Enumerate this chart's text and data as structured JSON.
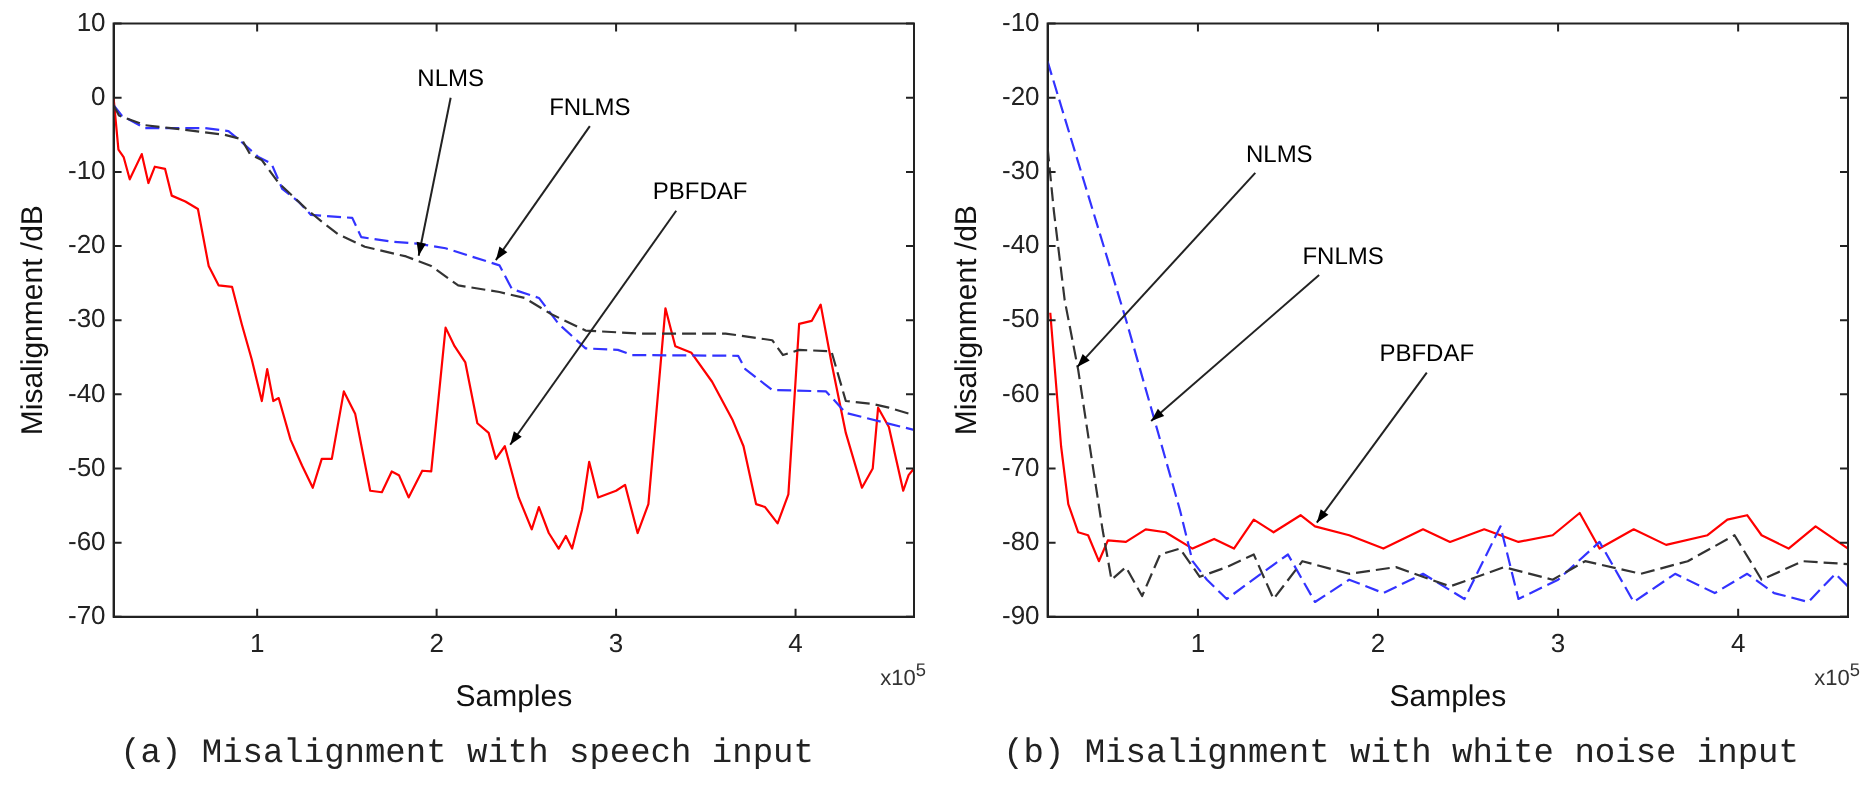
{
  "chart_data": [
    {
      "type": "line",
      "title": "(a) Misalignment with speech input",
      "xlabel": "Samples",
      "ylabel": "Misalignment /dB",
      "xlim": [
        0.2,
        4.66
      ],
      "xticks": [
        1,
        2,
        3,
        4
      ],
      "ylim": [
        -70,
        10
      ],
      "yticks": [
        10,
        0,
        -10,
        -20,
        -30,
        -40,
        -50,
        -60,
        -70
      ],
      "grid": false,
      "legend": false,
      "marker": "none",
      "annotations": [
        {
          "text": "NLMS",
          "x": 1.9,
          "y": -21.3
        },
        {
          "text": "FNLMS",
          "x": 2.33,
          "y": -21.9
        },
        {
          "text": "PBFDAF",
          "x": 2.41,
          "y": -46.8
        },
        "x10$^{5}$"
      ],
      "series": [
        {
          "color": "#333333",
          "line_style": "dashed",
          "x": [
            0.2,
            0.23,
            0.375,
            0.52,
            0.82,
            0.914,
            0.96,
            1.026,
            1.12,
            1.27,
            1.36,
            1.45,
            1.6,
            1.83,
            1.97,
            2.12,
            2.35,
            2.49,
            2.64,
            2.83,
            3.13,
            3.61,
            3.87,
            3.93,
            4.02,
            4.2,
            4.28,
            4.43,
            4.52,
            4.66
          ],
          "values": [
            -1,
            -2.4,
            -3.7,
            -4.1,
            -5,
            -5.6,
            -7.6,
            -8.4,
            -11.5,
            -14.9,
            -16.7,
            -18.4,
            -20.1,
            -21.4,
            -22.7,
            -25.3,
            -26.2,
            -27,
            -29.2,
            -31.4,
            -31.8,
            -31.8,
            -32.7,
            -34.7,
            -34,
            -34.2,
            -40.9,
            -41.3,
            -41.8,
            -42.8
          ]
        },
        {
          "color": "#3333ff",
          "line_style": "dashed",
          "x": [
            0.2,
            0.245,
            0.375,
            0.71,
            0.84,
            0.896,
            1.007,
            1.08,
            1.14,
            1.23,
            1.3,
            1.53,
            1.58,
            1.75,
            1.9,
            2.05,
            2.35,
            2.42,
            2.57,
            2.68,
            2.83,
            3.01,
            3.09,
            3.68,
            3.72,
            3.87,
            4.17,
            4.28,
            4.66
          ],
          "values": [
            -1,
            -2.4,
            -4.1,
            -4.1,
            -4.5,
            -5.6,
            -8,
            -8.9,
            -12.3,
            -14,
            -15.8,
            -16.2,
            -18.8,
            -19.4,
            -19.7,
            -20.3,
            -22.6,
            -25.8,
            -27,
            -30.5,
            -33.8,
            -34,
            -34.7,
            -34.8,
            -36.6,
            -39.4,
            -39.6,
            -42.5,
            -44.8
          ]
        },
        {
          "color": "#ff0000",
          "line_style": "solid",
          "x": [
            0.2,
            0.227,
            0.256,
            0.29,
            0.357,
            0.394,
            0.43,
            0.487,
            0.524,
            0.6,
            0.67,
            0.73,
            0.785,
            0.86,
            0.914,
            0.97,
            1.026,
            1.056,
            1.09,
            1.12,
            1.186,
            1.25,
            1.31,
            1.36,
            1.416,
            1.483,
            1.546,
            1.63,
            1.695,
            1.75,
            1.79,
            1.844,
            1.92,
            1.97,
            2.05,
            2.1,
            2.16,
            2.227,
            2.29,
            2.33,
            2.38,
            2.457,
            2.53,
            2.57,
            2.625,
            2.68,
            2.72,
            2.755,
            2.81,
            2.85,
            2.9,
            3.0,
            3.05,
            3.12,
            3.18,
            3.275,
            3.33,
            3.42,
            3.535,
            3.65,
            3.71,
            3.78,
            3.83,
            3.9,
            3.96,
            4.02,
            4.09,
            4.14,
            4.2,
            4.28,
            4.37,
            4.43,
            4.46,
            4.52,
            4.6,
            4.63,
            4.66
          ],
          "values": [
            0,
            -7,
            -8,
            -11,
            -7.6,
            -11.5,
            -9.3,
            -9.6,
            -13.2,
            -14,
            -15,
            -22.7,
            -25.3,
            -25.5,
            -30.5,
            -35.3,
            -40.9,
            -36.6,
            -40.9,
            -40.5,
            -46.1,
            -49.6,
            -52.6,
            -48.7,
            -48.7,
            -39.6,
            -42.6,
            -53,
            -53.2,
            -50.4,
            -50.9,
            -53.9,
            -50.3,
            -50.4,
            -31,
            -33.5,
            -35.7,
            -43.9,
            -45.2,
            -48.7,
            -47,
            -53.9,
            -58.2,
            -55.2,
            -58.7,
            -60.8,
            -59.1,
            -60.8,
            -55.6,
            -49.1,
            -53.9,
            -53,
            -52.2,
            -58.7,
            -54.8,
            -28.4,
            -33.5,
            -34.4,
            -38.3,
            -43.5,
            -47,
            -54.8,
            -55.2,
            -57.4,
            -53.5,
            -30.5,
            -30.1,
            -27.9,
            -35.7,
            -45.2,
            -52.6,
            -50,
            -41.8,
            -44.4,
            -53,
            -50.9,
            -50
          ]
        }
      ]
    },
    {
      "type": "line",
      "title": "(b) Misalignment with white noise input",
      "xlabel": "Samples",
      "ylabel": "Misalignment /dB",
      "xlim": [
        0.165,
        4.61
      ],
      "xticks": [
        1,
        2,
        3,
        4
      ],
      "ylim": [
        -90,
        -10
      ],
      "yticks": [
        -10,
        -20,
        -30,
        -40,
        -50,
        -60,
        -70,
        -80,
        -90
      ],
      "grid": false,
      "legend": false,
      "marker": "none",
      "annotations": [
        {
          "text": "NLMS",
          "x": 0.33,
          "y": -56.3
        },
        {
          "text": "FNLMS",
          "x": 0.74,
          "y": -63.6
        },
        {
          "text": "PBFDAF",
          "x": 1.66,
          "y": -77.3
        },
        "x10$^{5}$"
      ],
      "series": [
        {
          "color": "#333333",
          "line_style": "dashed",
          "x": [
            0.165,
            0.2,
            0.26,
            0.335,
            0.41,
            0.47,
            0.52,
            0.6,
            0.69,
            0.79,
            0.9,
            1.01,
            1.16,
            1.31,
            1.42,
            1.58,
            1.84,
            2.1,
            2.4,
            2.7,
            2.97,
            3.15,
            3.46,
            3.72,
            3.98,
            4.13,
            4.36,
            4.61
          ],
          "values": [
            -26.7,
            -35.3,
            -47.3,
            -56.7,
            -68.7,
            -78.2,
            -85,
            -83.3,
            -87.2,
            -81.6,
            -80.8,
            -84.6,
            -83.3,
            -81.6,
            -87.6,
            -82.5,
            -84.2,
            -83.3,
            -85.9,
            -83.3,
            -85,
            -82.5,
            -84.2,
            -82.5,
            -79,
            -85,
            -82.5,
            -82.9
          ]
        },
        {
          "color": "#3333ff",
          "line_style": "dashed",
          "x": [
            0.165,
            0.3,
            0.45,
            0.6,
            0.75,
            0.9,
            0.97,
            1.05,
            1.16,
            1.35,
            1.5,
            1.65,
            1.84,
            2.03,
            2.25,
            2.48,
            2.68,
            2.78,
            3.0,
            3.23,
            3.42,
            3.65,
            3.87,
            4.05,
            4.2,
            4.39,
            4.54,
            4.61
          ],
          "values": [
            -15.1,
            -25.9,
            -37.9,
            -49.9,
            -62.7,
            -75.6,
            -82.5,
            -85,
            -87.6,
            -84.2,
            -81.6,
            -88,
            -85,
            -86.8,
            -84.2,
            -87.6,
            -77.8,
            -87.6,
            -85,
            -79.9,
            -88,
            -84.2,
            -86.8,
            -84.2,
            -86.8,
            -88,
            -84.2,
            -85.9
          ]
        },
        {
          "color": "#ff0000",
          "line_style": "solid",
          "x": [
            0.18,
            0.2,
            0.24,
            0.28,
            0.335,
            0.39,
            0.45,
            0.5,
            0.6,
            0.71,
            0.82,
            0.97,
            1.09,
            1.2,
            1.31,
            1.42,
            1.57,
            1.65,
            1.84,
            2.03,
            2.25,
            2.4,
            2.59,
            2.78,
            2.97,
            3.12,
            3.23,
            3.42,
            3.6,
            3.83,
            3.94,
            4.05,
            4.13,
            4.28,
            4.43,
            4.61
          ],
          "values": [
            -49,
            -55,
            -67,
            -74.8,
            -78.6,
            -79,
            -82.5,
            -79.7,
            -79.9,
            -78.2,
            -78.6,
            -80.8,
            -79.5,
            -80.8,
            -76.9,
            -78.6,
            -76.3,
            -77.8,
            -79,
            -80.8,
            -78.2,
            -79.9,
            -78.2,
            -79.9,
            -79,
            -76,
            -80.8,
            -78.2,
            -80.3,
            -79,
            -76.9,
            -76.3,
            -79,
            -80.8,
            -77.8,
            -80.8
          ]
        }
      ]
    }
  ]
}
